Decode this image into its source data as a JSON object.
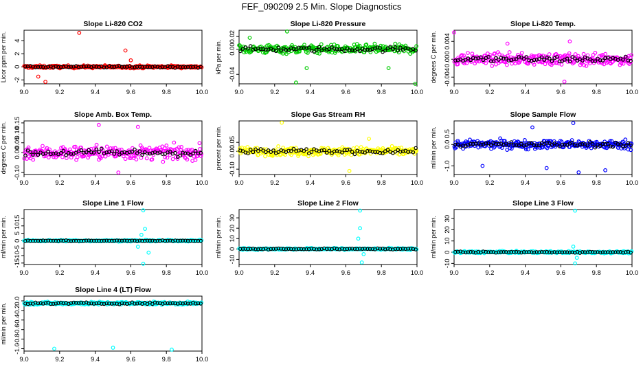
{
  "title": "FEF_090209  2.5 Min. Slope Diagnostics",
  "colors": {
    "red": "#ff0000",
    "green": "#00cc00",
    "magenta": "#ff00ff",
    "yellow": "#ffff00",
    "blue": "#0000ff",
    "cyan": "#00ffff",
    "black": "#000000"
  },
  "chart_data": [
    {
      "type": "scatter",
      "title": "Slope Li-820 CO2",
      "ylabel": "Licor ppm per min.",
      "xlim": [
        9.0,
        10.0
      ],
      "ylim": [
        -2.6,
        5.6
      ],
      "xticks": [
        "9.0",
        "9.2",
        "9.4",
        "9.6",
        "9.8",
        "10.0"
      ],
      "yticks": [
        -2,
        0,
        2,
        4
      ],
      "ytick_labels": [
        "-2",
        "0",
        "2",
        "4"
      ],
      "color": "red",
      "band": [
        0,
        0.35
      ],
      "outliers": [
        [
          9.31,
          5.2
        ],
        [
          9.57,
          2.5
        ],
        [
          9.12,
          -2.3
        ],
        [
          9.08,
          -1.5
        ],
        [
          9.6,
          1.0
        ]
      ]
    },
    {
      "type": "scatter",
      "title": "Slope Li-820 Pressure",
      "ylabel": "kPa per min.",
      "xlim": [
        9.0,
        10.0
      ],
      "ylim": [
        -0.055,
        0.03
      ],
      "xticks": [
        "9.0",
        "9.2",
        "9.4",
        "9.6",
        "9.8",
        "10.0"
      ],
      "yticks": [
        -0.04,
        0.0,
        0.02
      ],
      "ytick_labels": [
        "-0.04",
        "0.00",
        "0.02"
      ],
      "color": "green",
      "band": [
        0,
        0.012
      ],
      "outliers": [
        [
          9.27,
          0.028
        ],
        [
          9.32,
          -0.053
        ],
        [
          9.99,
          -0.055
        ],
        [
          9.06,
          0.018
        ],
        [
          9.38,
          -0.03
        ],
        [
          9.84,
          -0.03
        ]
      ]
    },
    {
      "type": "scatter",
      "title": "Slope Li-820 Temp.",
      "ylabel": "degrees C per min.",
      "xlim": [
        9.0,
        10.0
      ],
      "ylim": [
        -0.0055,
        0.0065
      ],
      "xticks": [
        "9.0",
        "9.2",
        "9.4",
        "9.6",
        "9.8",
        "10.0"
      ],
      "yticks": [
        -0.004,
        0.0,
        0.004
      ],
      "ytick_labels": [
        "-0.004",
        "0.000",
        "0.004"
      ],
      "color": "magenta",
      "band": [
        0,
        0.0022
      ],
      "outliers": [
        [
          9.0,
          0.006
        ],
        [
          9.62,
          -0.005
        ],
        [
          9.3,
          0.0035
        ],
        [
          9.65,
          0.004
        ]
      ]
    },
    {
      "type": "scatter",
      "title": "Slope Amb. Box Temp.",
      "ylabel": "degrees C per min.",
      "xlim": [
        9.0,
        10.0
      ],
      "ylim": [
        -0.11,
        0.16
      ],
      "xticks": [
        "9.0",
        "9.2",
        "9.4",
        "9.6",
        "9.8",
        "10.0"
      ],
      "yticks": [
        -0.1,
        0.0,
        0.05,
        0.1,
        0.15
      ],
      "ytick_labels": [
        "-0.10",
        "0.00",
        "0.05",
        "0.10",
        "0.15"
      ],
      "color": "magenta",
      "band": [
        0,
        0.06
      ],
      "outliers": [
        [
          9.42,
          0.14
        ],
        [
          9.64,
          0.13
        ],
        [
          9.53,
          -0.1
        ]
      ]
    },
    {
      "type": "scatter",
      "title": "Slope Gas Stream RH",
      "ylabel": "percent per min.",
      "xlim": [
        9.0,
        10.0
      ],
      "ylim": [
        -0.13,
        0.17
      ],
      "xticks": [
        "9.0",
        "9.2",
        "9.4",
        "9.6",
        "9.8",
        "10.0"
      ],
      "yticks": [
        -0.1,
        0.0,
        0.05
      ],
      "ytick_labels": [
        "-0.10",
        "0.00",
        "0.05"
      ],
      "color": "yellow",
      "band": [
        0,
        0.04
      ],
      "outliers": [
        [
          9.24,
          0.16
        ],
        [
          9.62,
          -0.11
        ],
        [
          9.73,
          0.07
        ]
      ]
    },
    {
      "type": "scatter",
      "title": "Slope Sample Flow",
      "ylabel": "ml/min per min.",
      "xlim": [
        9.0,
        10.0
      ],
      "ylim": [
        -1.4,
        1.1
      ],
      "xticks": [
        "9.0",
        "9.2",
        "9.4",
        "9.6",
        "9.8",
        "10.0"
      ],
      "yticks": [
        -1.0,
        0.0,
        0.5
      ],
      "ytick_labels": [
        "-1.0",
        "0.0",
        "0.5"
      ],
      "color": "blue",
      "band": [
        0,
        0.35
      ],
      "outliers": [
        [
          9.67,
          1.0
        ],
        [
          9.7,
          -1.3
        ],
        [
          9.16,
          -1.0
        ],
        [
          9.52,
          -1.1
        ],
        [
          9.85,
          -1.2
        ],
        [
          9.44,
          0.8
        ]
      ]
    },
    {
      "type": "scatter",
      "title": "Slope Line 1 Flow",
      "ylabel": "ml/min per min.",
      "xlim": [
        9.0,
        10.0
      ],
      "ylim": [
        -16,
        21
      ],
      "xticks": [
        "9.0",
        "9.2",
        "9.4",
        "9.6",
        "9.8",
        "10.0"
      ],
      "yticks": [
        -15,
        -10,
        -5,
        0,
        5,
        10,
        15
      ],
      "ytick_labels": [
        "-15",
        "-10",
        "-5",
        "0",
        "5",
        "10",
        "15"
      ],
      "color": "cyan",
      "band": [
        0,
        0.8
      ],
      "outliers": [
        [
          9.67,
          20.5
        ],
        [
          9.67,
          -15.5
        ],
        [
          9.66,
          4
        ],
        [
          9.64,
          -4
        ],
        [
          9.68,
          8
        ],
        [
          9.7,
          -8
        ]
      ]
    },
    {
      "type": "scatter",
      "title": "Slope Line 2 Flow",
      "ylabel": "ml/min per min.",
      "xlim": [
        9.0,
        10.0
      ],
      "ylim": [
        -15,
        38
      ],
      "xticks": [
        "9.0",
        "9.2",
        "9.4",
        "9.6",
        "9.8",
        "10.0"
      ],
      "yticks": [
        -10,
        0,
        10,
        20,
        30
      ],
      "ytick_labels": [
        "-10",
        "0",
        "10",
        "20",
        "30"
      ],
      "color": "cyan",
      "band": [
        0,
        1.5
      ],
      "outliers": [
        [
          9.68,
          37
        ],
        [
          9.69,
          -13
        ],
        [
          9.68,
          20
        ],
        [
          9.67,
          10
        ],
        [
          9.7,
          -5
        ]
      ]
    },
    {
      "type": "scatter",
      "title": "Slope Line 3 Flow",
      "ylabel": "ml/min per min.",
      "xlim": [
        9.0,
        10.0
      ],
      "ylim": [
        -11,
        38
      ],
      "xticks": [
        "9.0",
        "9.2",
        "9.4",
        "9.6",
        "9.8",
        "10.0"
      ],
      "yticks": [
        -10,
        0,
        10,
        20,
        30
      ],
      "ytick_labels": [
        "-10",
        "0",
        "10",
        "20",
        "30"
      ],
      "color": "cyan",
      "band": [
        0,
        1.5
      ],
      "outliers": [
        [
          9.68,
          37
        ],
        [
          9.68,
          -10
        ],
        [
          9.67,
          5
        ],
        [
          9.69,
          -5
        ]
      ]
    },
    {
      "type": "scatter",
      "title": "Slope Line 4 (LT) Flow",
      "ylabel": "ml/min per min.",
      "xlim": [
        9.0,
        10.0
      ],
      "ylim": [
        -1.05,
        0.1
      ],
      "xticks": [
        "9.0",
        "9.2",
        "9.4",
        "9.6",
        "9.8",
        "10.0"
      ],
      "yticks": [
        -1.0,
        -0.8,
        -0.6,
        -0.4,
        -0.2,
        0.0
      ],
      "ytick_labels": [
        "-1.0",
        "-0.8",
        "-0.6",
        "-0.4",
        "-0.2",
        "0.0"
      ],
      "color": "cyan",
      "band": [
        -0.05,
        0.05
      ],
      "outliers": [
        [
          9.17,
          -1.0
        ],
        [
          9.5,
          -0.98
        ],
        [
          9.83,
          -1.02
        ],
        [
          9.68,
          -0.05
        ]
      ]
    }
  ]
}
